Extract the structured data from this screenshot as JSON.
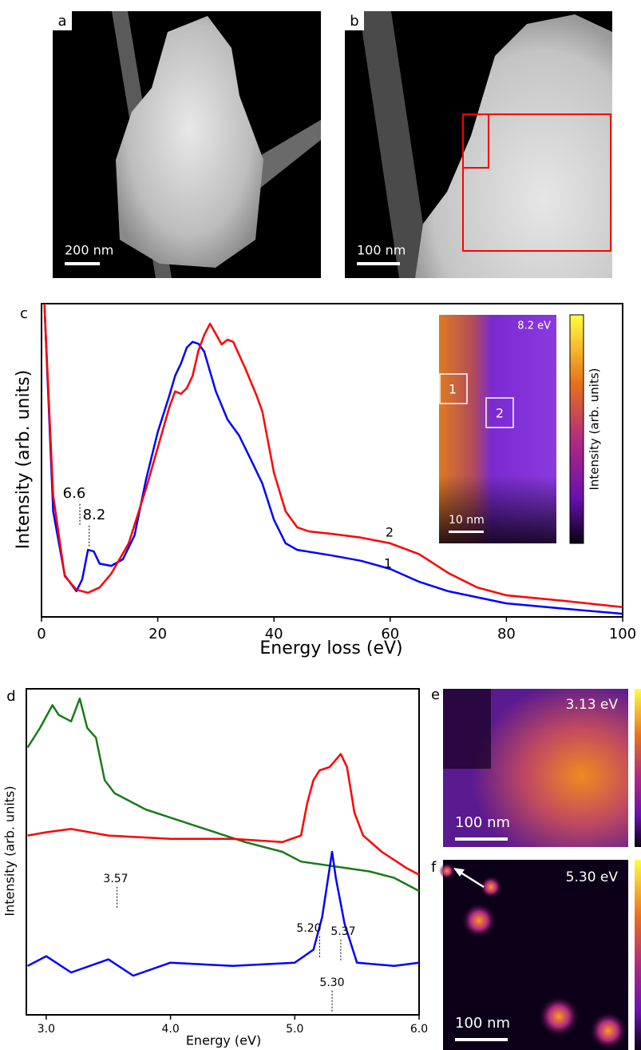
{
  "panels": [
    {
      "label": "a",
      "scale_bar": "200 nm"
    },
    {
      "label": "b",
      "scale_bar": "100 nm"
    },
    {
      "label": "e",
      "energy": "3.13 eV",
      "scale_bar": "100 nm"
    },
    {
      "label": "f",
      "energy": "5.30 eV",
      "scale_bar": "100 nm"
    }
  ],
  "chart_data": [
    {
      "type": "line",
      "panel_label": "c",
      "xlabel": "Energy loss (eV)",
      "ylabel": "Intensity (arb. units)",
      "xlim": [
        0,
        100
      ],
      "xticks": [
        0,
        20,
        40,
        60,
        80,
        100
      ],
      "ylim": [
        0,
        100
      ],
      "series": [
        {
          "name": "1",
          "color": "#0000ff",
          "x": [
            0.5,
            2,
            4,
            6,
            7,
            8,
            9,
            10,
            12,
            14,
            16,
            18,
            20,
            22,
            23,
            24,
            25,
            26,
            27,
            28,
            30,
            32,
            34,
            36,
            38,
            40,
            42,
            44,
            50,
            55,
            60,
            65,
            70,
            80,
            90,
            100
          ],
          "values": [
            100,
            33.7,
            13.3,
            8.2,
            12,
            21.4,
            20.9,
            17,
            16.3,
            18.4,
            26,
            43.9,
            59,
            70.7,
            77,
            80.9,
            86,
            87.8,
            87.2,
            84.7,
            72,
            63,
            57.9,
            50.3,
            42.6,
            31,
            23.5,
            21.4,
            19.6,
            17.9,
            15.3,
            11.2,
            8.2,
            4.3,
            2.6,
            1
          ]
        },
        {
          "name": "2",
          "color": "#ff0000",
          "x": [
            0.5,
            2,
            4,
            6,
            8,
            10,
            12,
            15,
            18,
            20,
            22,
            23,
            24,
            25,
            26,
            27,
            28,
            29,
            30,
            31,
            32,
            33,
            35,
            37,
            38,
            40,
            42,
            44,
            46,
            50,
            55,
            60,
            65,
            70,
            75,
            80,
            90,
            100
          ],
          "values": [
            100,
            38.8,
            13,
            8.7,
            7.7,
            9.4,
            13.8,
            23.5,
            41,
            54,
            67,
            72,
            71.2,
            73,
            77,
            85,
            90,
            93.6,
            90.3,
            87,
            88.5,
            87.8,
            79.6,
            70.7,
            65.6,
            46,
            33.7,
            28.6,
            27.3,
            26.5,
            25.3,
            23.5,
            20,
            14,
            9.4,
            6.9,
            5.1,
            3.1
          ]
        }
      ],
      "annotations": [
        {
          "x": 6.6,
          "text": "6.6"
        },
        {
          "x": 8.2,
          "text": "8.2"
        }
      ],
      "inset": {
        "energy": "8.2 eV",
        "regions": [
          "1",
          "2"
        ],
        "scale_bar": "10 nm",
        "colorbar_label": "Intensity (arb. units)"
      }
    },
    {
      "type": "line",
      "panel_label": "d",
      "xlabel": "Energy (eV)",
      "ylabel": "Intensity (arb. units)",
      "xlim": [
        2.84,
        6.0
      ],
      "xticks": [
        {
          "value": 3,
          "label": "3.0"
        },
        {
          "value": 4,
          "label": "4.0"
        },
        {
          "value": 5,
          "label": "5.0"
        },
        {
          "value": 6,
          "label": "6.0"
        }
      ],
      "ylim": [
        0,
        100
      ],
      "series": [
        {
          "color": "#1a7a1a",
          "x": [
            2.85,
            2.95,
            3.05,
            3.1,
            3.2,
            3.27,
            3.33,
            3.4,
            3.47,
            3.55,
            3.8,
            4.2,
            4.6,
            4.9,
            5.05,
            5.6,
            5.8,
            6.0
          ],
          "values": [
            82,
            88,
            95,
            92,
            90,
            97,
            88,
            85,
            72,
            68,
            63,
            58,
            53,
            50,
            47,
            44,
            42,
            38
          ]
        },
        {
          "color": "#ff0000",
          "x": [
            2.85,
            3.0,
            3.2,
            3.5,
            4.0,
            4.5,
            4.9,
            5.05,
            5.1,
            5.15,
            5.2,
            5.28,
            5.37,
            5.42,
            5.48,
            5.55,
            5.7,
            5.9,
            6.0
          ],
          "values": [
            55,
            56,
            57,
            55,
            54,
            54,
            53,
            55,
            65,
            72,
            75,
            76,
            80,
            76,
            62,
            55,
            50,
            45,
            43
          ]
        },
        {
          "color": "#0000ff",
          "x": [
            2.85,
            3.0,
            3.2,
            3.5,
            3.7,
            4.0,
            4.5,
            5.0,
            5.15,
            5.22,
            5.28,
            5.3,
            5.33,
            5.4,
            5.5,
            5.8,
            6.0
          ],
          "values": [
            15,
            18,
            13,
            17,
            12,
            16,
            15,
            16,
            20,
            30,
            45,
            50,
            42,
            28,
            16,
            15,
            16
          ]
        }
      ],
      "annotations": [
        {
          "x": 3.57,
          "text": "3.57"
        },
        {
          "x": 5.2,
          "text": "5.20"
        },
        {
          "x": 5.37,
          "text": "5.37"
        },
        {
          "x": 5.3,
          "text": "5.30"
        }
      ]
    }
  ]
}
